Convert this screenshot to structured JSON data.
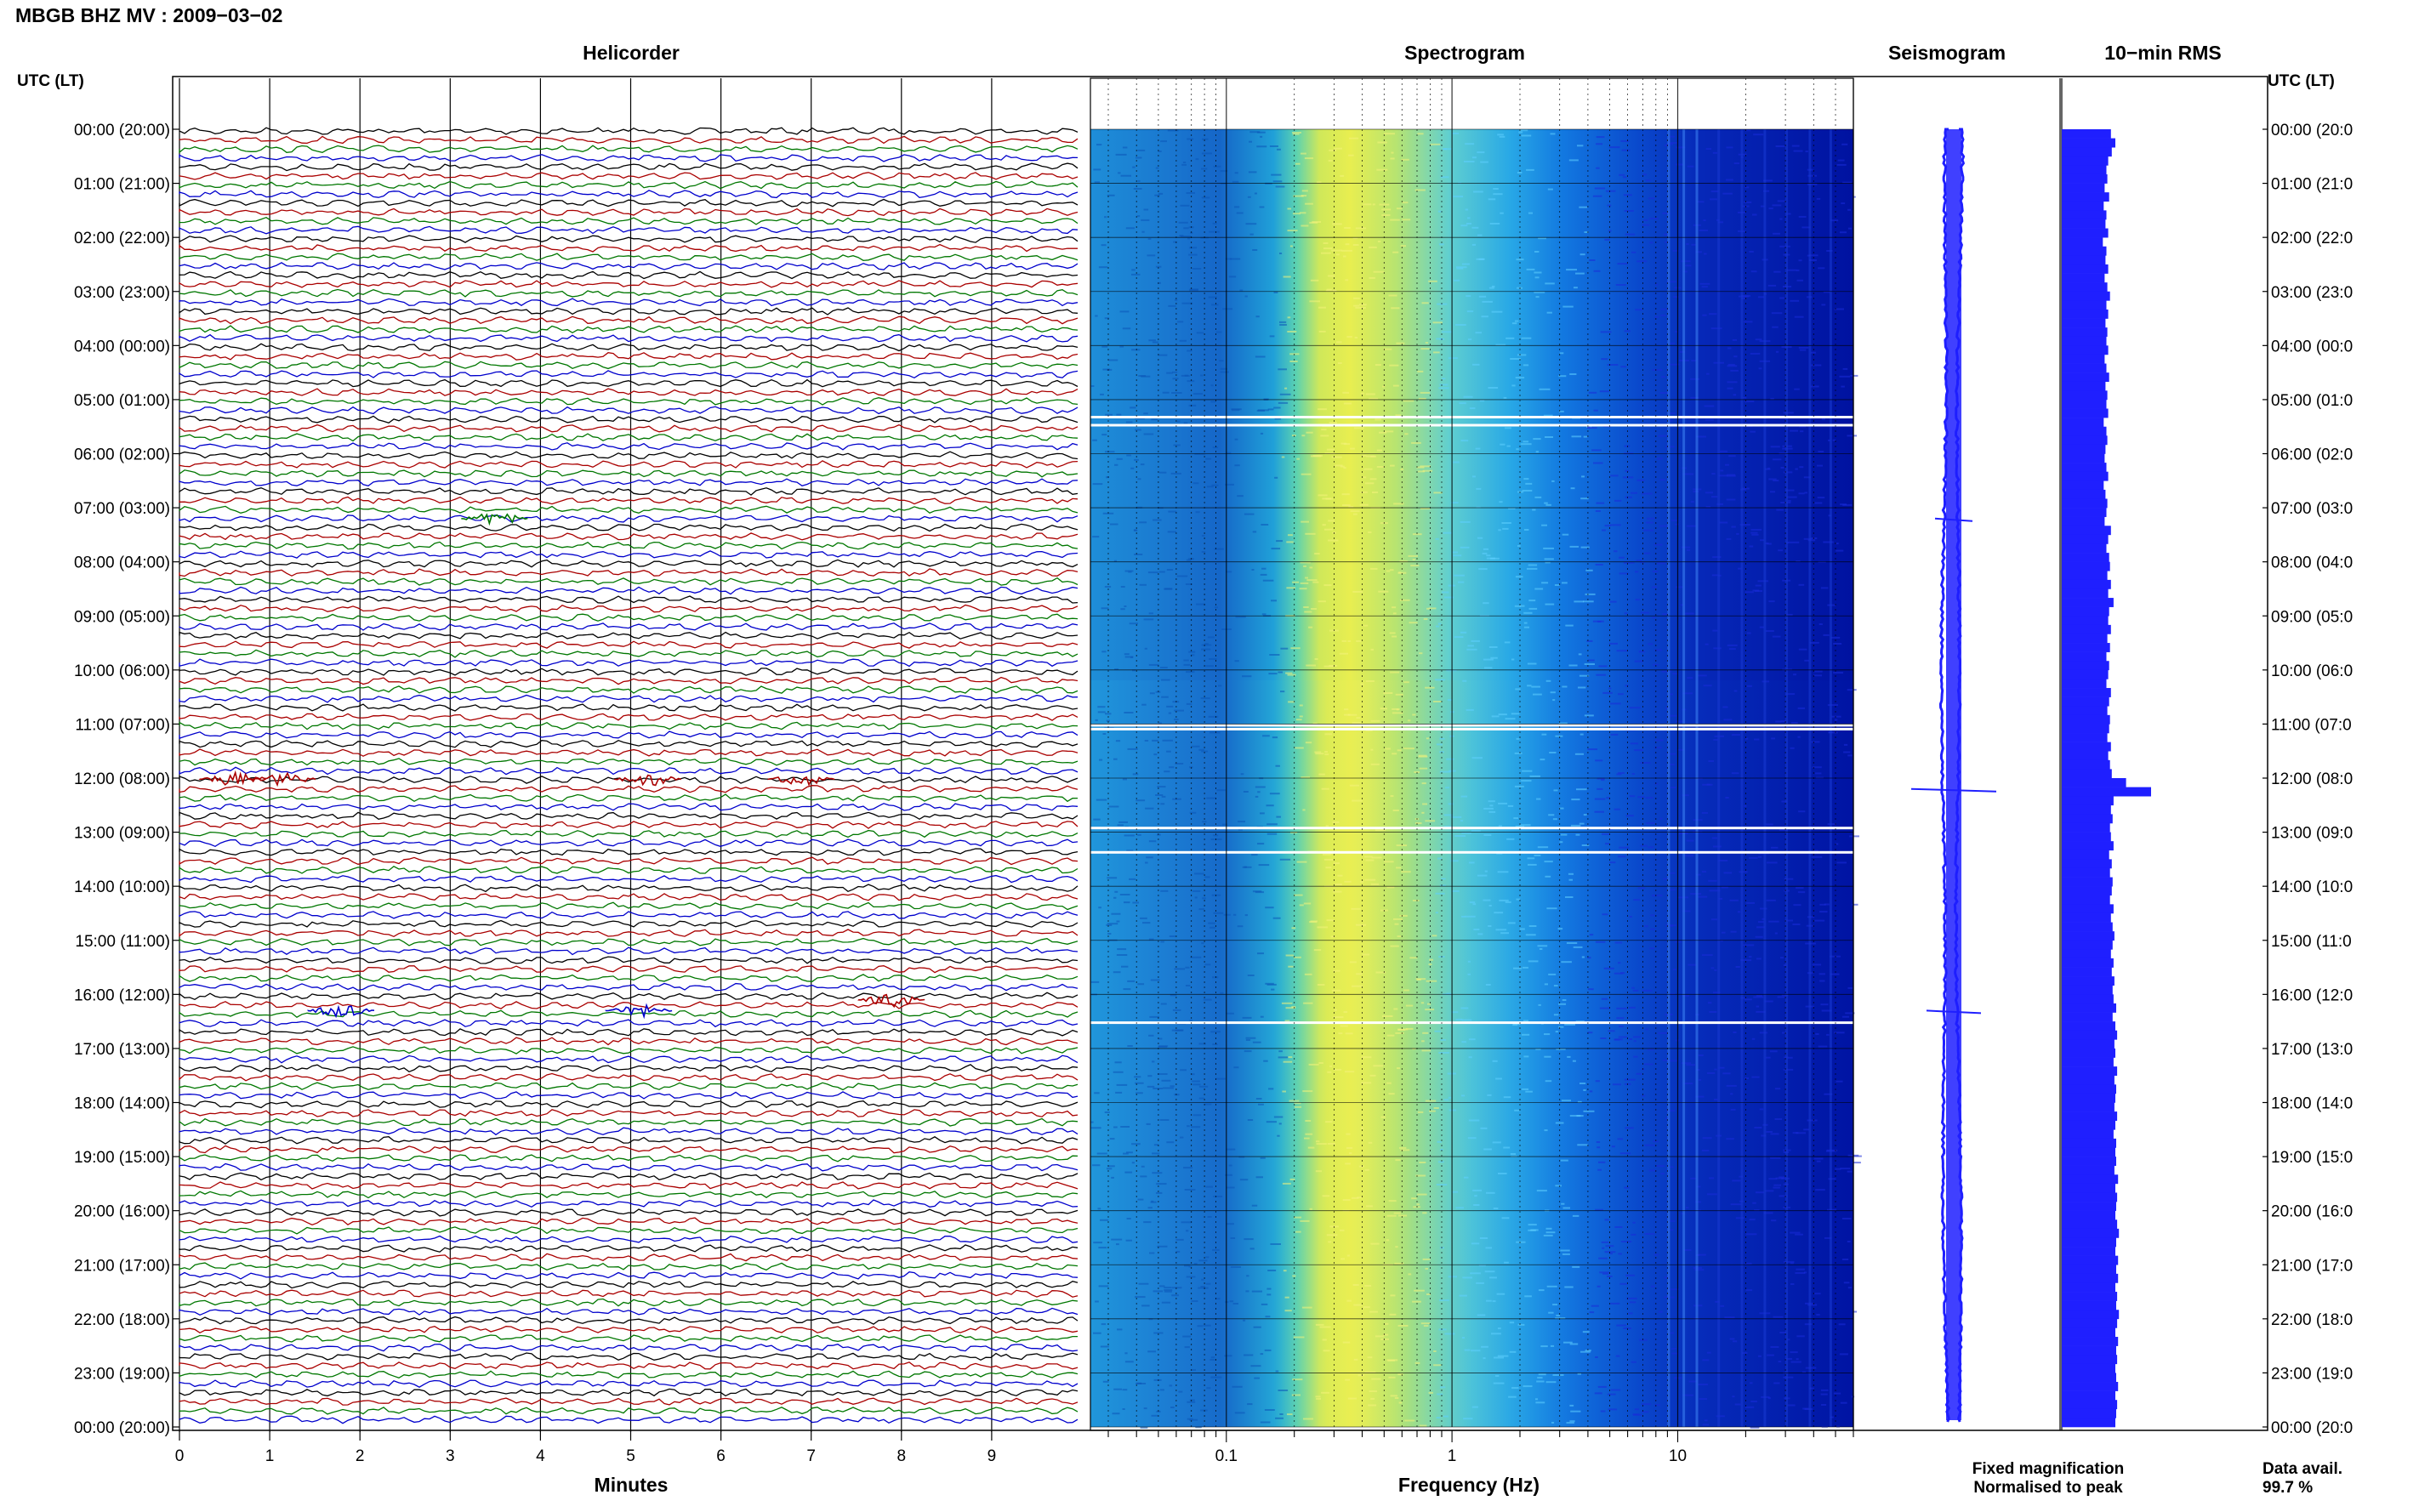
{
  "header": {
    "title": "MBGB BHZ MV : 2009−03−02"
  },
  "panels": {
    "helicorder": "Helicorder",
    "spectrogram": "Spectrogram",
    "seismogram": "Seismogram",
    "rms": "10−min RMS"
  },
  "axes": {
    "left_time_header": "UTC (LT)",
    "right_time_header": "UTC (LT)",
    "minutes_label": "Minutes",
    "frequency_label": "Frequency (Hz)"
  },
  "legend": {
    "fixed": "Fixed magnification",
    "normalised": "Normalised to peak",
    "fixed_color": "#1f1fff",
    "normalised_color": "#ff1f1f"
  },
  "data_availability": {
    "label": "Data avail.",
    "value": "99.7 %"
  },
  "colors": {
    "trace_colors": [
      "#000000",
      "#aa0000",
      "#007700",
      "#0000cc"
    ],
    "seismogram": "#1f1fff",
    "rms": "#1f1fff"
  },
  "chart_data": {
    "type": "heatmap",
    "time_labels_left": [
      "00:00 (20:00)",
      "01:00 (21:00)",
      "02:00 (22:00)",
      "03:00 (23:00)",
      "04:00 (00:00)",
      "05:00 (01:00)",
      "06:00 (02:00)",
      "07:00 (03:00)",
      "08:00 (04:00)",
      "09:00 (05:00)",
      "10:00 (06:00)",
      "11:00 (07:00)",
      "12:00 (08:00)",
      "13:00 (09:00)",
      "14:00 (10:00)",
      "15:00 (11:00)",
      "16:00 (12:00)",
      "17:00 (13:00)",
      "18:00 (14:00)",
      "19:00 (15:00)",
      "20:00 (16:00)",
      "21:00 (17:00)",
      "22:00 (18:00)",
      "23:00 (19:00)",
      "00:00 (20:00)"
    ],
    "time_labels_right": [
      "00:00 (20:0",
      "01:00 (21:0",
      "02:00 (22:0",
      "03:00 (23:0",
      "04:00 (00:0",
      "05:00 (01:0",
      "06:00 (02:0",
      "07:00 (03:0",
      "08:00 (04:0",
      "09:00 (05:0",
      "10:00 (06:0",
      "11:00 (07:0",
      "12:00 (08:0",
      "13:00 (09:0",
      "14:00 (10:0",
      "15:00 (11:0",
      "16:00 (12:0",
      "17:00 (13:0",
      "18:00 (14:0",
      "19:00 (15:0",
      "20:00 (16:0",
      "21:00 (17:0",
      "22:00 (18:0",
      "23:00 (19:0",
      "00:00 (20:0"
    ],
    "minute_ticks": [
      "0",
      "1",
      "2",
      "3",
      "4",
      "5",
      "6",
      "7",
      "8",
      "9"
    ],
    "frequency_ticks": [
      "0.1",
      "1",
      "10"
    ],
    "frequency_range_hz": [
      0.025,
      60
    ],
    "minutes_range": [
      0,
      10
    ],
    "traces_per_hour": 6,
    "rms_10min": [
      0.55,
      0.6,
      0.56,
      0.52,
      0.5,
      0.51,
      0.48,
      0.53,
      0.47,
      0.5,
      0.49,
      0.52,
      0.46,
      0.5,
      0.49,
      0.52,
      0.48,
      0.51,
      0.54,
      0.5,
      0.52,
      0.49,
      0.51,
      0.5,
      0.52,
      0.48,
      0.5,
      0.53,
      0.49,
      0.51,
      0.5,
      0.52,
      0.47,
      0.5,
      0.51,
      0.49,
      0.48,
      0.5,
      0.52,
      0.47,
      0.49,
      0.51,
      0.5,
      0.48,
      0.55,
      0.52,
      0.5,
      0.53,
      0.54,
      0.51,
      0.55,
      0.52,
      0.58,
      0.53,
      0.52,
      0.55,
      0.51,
      0.54,
      0.5,
      0.53,
      0.52,
      0.5,
      0.55,
      0.53,
      0.51,
      0.54,
      0.53,
      0.51,
      0.55,
      0.52,
      0.54,
      0.56,
      0.72,
      1.0,
      0.58,
      0.55,
      0.57,
      0.54,
      0.55,
      0.58,
      0.53,
      0.56,
      0.54,
      0.57,
      0.56,
      0.54,
      0.58,
      0.55,
      0.57,
      0.59,
      0.57,
      0.55,
      0.58,
      0.56,
      0.59,
      0.57,
      0.58,
      0.61,
      0.57,
      0.6,
      0.62,
      0.59,
      0.6,
      0.58,
      0.62,
      0.59,
      0.61,
      0.6,
      0.59,
      0.62,
      0.6,
      0.58,
      0.61,
      0.6,
      0.61,
      0.59,
      0.63,
      0.6,
      0.62,
      0.61,
      0.6,
      0.62,
      0.64,
      0.61,
      0.6,
      0.63,
      0.61,
      0.63,
      0.6,
      0.62,
      0.61,
      0.64,
      0.62,
      0.6,
      0.63,
      0.61,
      0.62,
      0.6,
      0.61,
      0.63,
      0.6,
      0.62,
      0.61,
      0.6
    ]
  }
}
